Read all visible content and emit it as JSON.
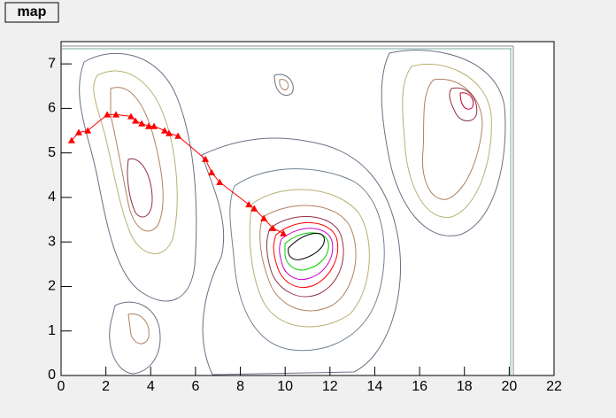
{
  "chart_data": {
    "type": "line",
    "title": "map",
    "x": [
      0.47,
      0.79,
      1.19,
      2.06,
      2.45,
      3.12,
      3.32,
      3.6,
      3.91,
      4.15,
      4.62,
      4.82,
      5.22,
      6.44,
      6.72,
      7.08,
      8.38,
      8.62,
      9.05,
      9.45,
      9.92
    ],
    "values": [
      5.28,
      5.46,
      5.5,
      5.86,
      5.86,
      5.82,
      5.72,
      5.66,
      5.6,
      5.6,
      5.5,
      5.44,
      5.38,
      4.86,
      4.56,
      4.34,
      3.84,
      3.75,
      3.53,
      3.31,
      3.19
    ],
    "color": "#ff0000",
    "marker": "triangle",
    "xlim": [
      0,
      22
    ],
    "xticks": [
      0,
      2,
      4,
      6,
      8,
      10,
      12,
      14,
      16,
      18,
      20,
      22
    ],
    "ylim": [
      0,
      7.5
    ],
    "yticks": [
      0,
      1,
      2,
      3,
      4,
      5,
      6,
      7
    ]
  }
}
